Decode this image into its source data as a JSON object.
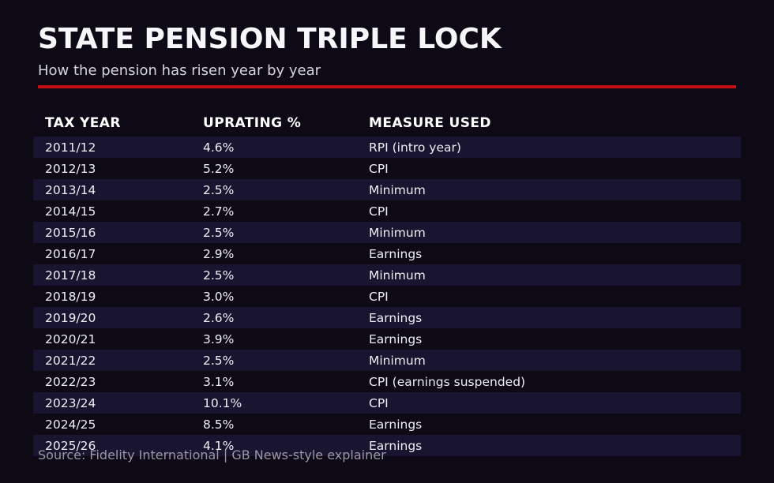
{
  "header": {
    "title": "STATE PENSION TRIPLE LOCK",
    "subtitle": "How the pension has risen year by year"
  },
  "chart_data": {
    "type": "table",
    "title": "STATE PENSION TRIPLE LOCK",
    "subtitle": "How the pension has risen year by year",
    "columns": [
      "TAX YEAR",
      "UPRATING %",
      "MEASURE USED"
    ],
    "rows": [
      [
        "2011/12",
        "4.6%",
        "RPI (intro year)"
      ],
      [
        "2012/13",
        "5.2%",
        "CPI"
      ],
      [
        "2013/14",
        "2.5%",
        "Minimum"
      ],
      [
        "2014/15",
        "2.7%",
        "CPI"
      ],
      [
        "2015/16",
        "2.5%",
        "Minimum"
      ],
      [
        "2016/17",
        "2.9%",
        "Earnings"
      ],
      [
        "2017/18",
        "2.5%",
        "Minimum"
      ],
      [
        "2018/19",
        "3.0%",
        "CPI"
      ],
      [
        "2019/20",
        "2.6%",
        "Earnings"
      ],
      [
        "2020/21",
        "3.9%",
        "Earnings"
      ],
      [
        "2021/22",
        "2.5%",
        "Minimum"
      ],
      [
        "2022/23",
        "3.1%",
        "CPI (earnings suspended)"
      ],
      [
        "2023/24",
        "10.1%",
        "CPI"
      ],
      [
        "2024/25",
        "8.5%",
        "Earnings"
      ],
      [
        "2025/26",
        "4.1%",
        "Earnings"
      ]
    ],
    "uprating_values_percent": [
      4.6,
      5.2,
      2.5,
      2.7,
      2.5,
      2.9,
      2.5,
      3.0,
      2.6,
      3.9,
      2.5,
      3.1,
      10.1,
      8.5,
      4.1
    ],
    "layout": {
      "striped_rows": "odd (1st, 3rd, 5th, ...)",
      "grid": "off",
      "legend": "none"
    }
  },
  "footer": {
    "source": "Source: Fidelity International | GB News-style explainer"
  },
  "colors": {
    "background": "#0d0a16",
    "row_stripe": "#191530",
    "accent_red": "#c50d13",
    "title_text": "#f7f6f9",
    "body_text": "#efeef3",
    "subtitle_text": "#d6d4dc",
    "source_text": "#9b97a7"
  }
}
